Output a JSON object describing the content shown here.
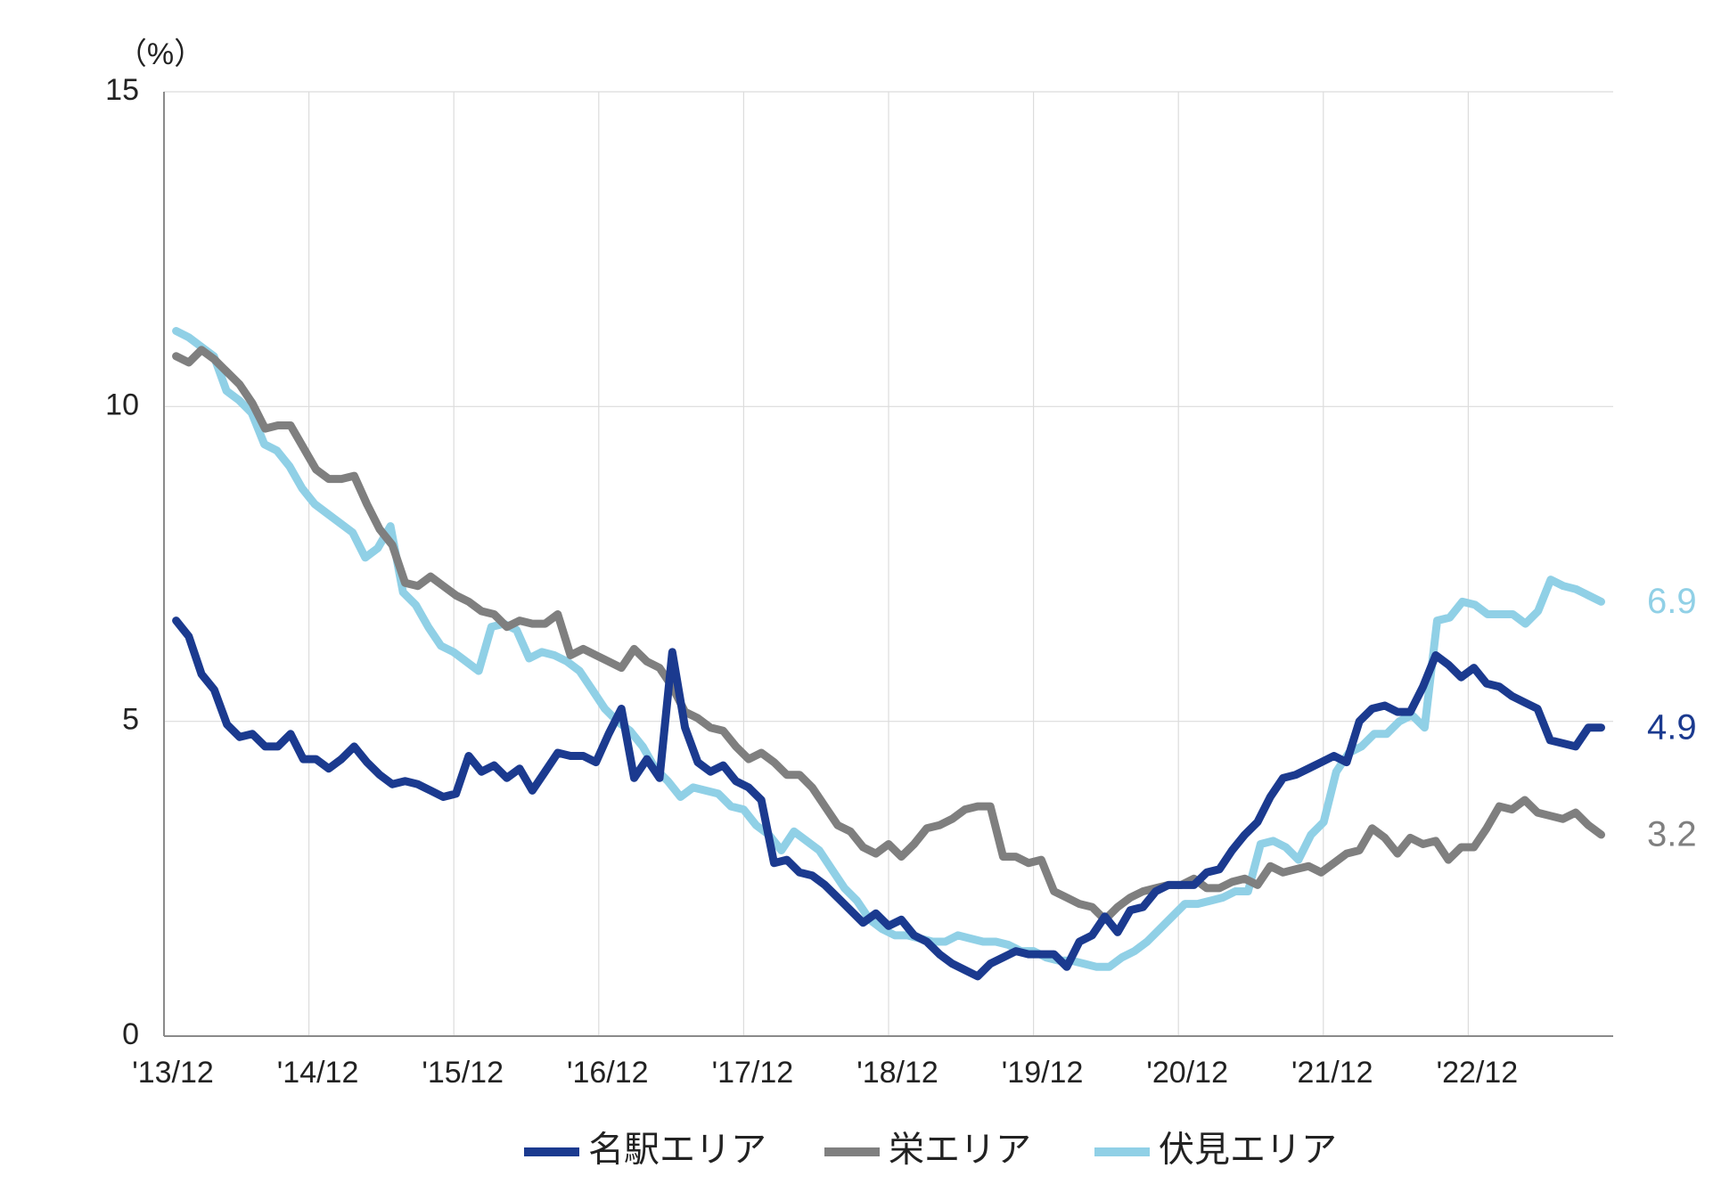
{
  "chart_data": {
    "type": "line",
    "ylabel": "（%）",
    "ylim": [
      0,
      15
    ],
    "yticks": [
      0,
      5,
      10,
      15
    ],
    "xticks": [
      "'13/12",
      "'14/12",
      "'15/12",
      "'16/12",
      "'17/12",
      "'18/12",
      "'19/12",
      "'20/12",
      "'21/12",
      "'22/12"
    ],
    "x_start_month": "2013/12",
    "grid": "vertical+horizontal",
    "legend_position": "bottom",
    "series": [
      {
        "name": "名駅エリア",
        "color": "#1b3a8f",
        "end_label": "4.9",
        "values": [
          6.6,
          6.35,
          5.75,
          5.5,
          4.95,
          4.75,
          4.8,
          4.6,
          4.6,
          4.8,
          4.4,
          4.4,
          4.25,
          4.4,
          4.6,
          4.35,
          4.15,
          4.0,
          4.05,
          4.0,
          3.9,
          3.8,
          3.85,
          4.45,
          4.2,
          4.3,
          4.1,
          4.25,
          3.9,
          4.2,
          4.5,
          4.45,
          4.45,
          4.35,
          4.8,
          5.2,
          4.1,
          4.4,
          4.1,
          6.1,
          4.9,
          4.35,
          4.2,
          4.3,
          4.05,
          3.95,
          3.75,
          2.75,
          2.8,
          2.6,
          2.55,
          2.4,
          2.2,
          2.0,
          1.8,
          1.95,
          1.75,
          1.85,
          1.6,
          1.5,
          1.3,
          1.15,
          1.05,
          0.95,
          1.15,
          1.25,
          1.35,
          1.3,
          1.3,
          1.3,
          1.1,
          1.5,
          1.6,
          1.9,
          1.65,
          2.0,
          2.05,
          2.3,
          2.4,
          2.4,
          2.4,
          2.6,
          2.65,
          2.95,
          3.2,
          3.4,
          3.8,
          4.1,
          4.15,
          4.25,
          4.35,
          4.45,
          4.35,
          5.0,
          5.2,
          5.25,
          5.15,
          5.15,
          5.55,
          6.05,
          5.9,
          5.7,
          5.85,
          5.6,
          5.55,
          5.4,
          5.3,
          5.2,
          4.7,
          4.65,
          4.6,
          4.9,
          4.9
        ]
      },
      {
        "name": "栄エリア",
        "color": "#7f7f7f",
        "end_label": "3.2",
        "values": [
          10.8,
          10.7,
          10.9,
          10.75,
          10.55,
          10.35,
          10.05,
          9.65,
          9.7,
          9.7,
          9.35,
          9.0,
          8.85,
          8.85,
          8.9,
          8.45,
          8.05,
          7.8,
          7.2,
          7.15,
          7.3,
          7.15,
          7.0,
          6.9,
          6.75,
          6.7,
          6.5,
          6.6,
          6.55,
          6.55,
          6.7,
          6.05,
          6.15,
          6.05,
          5.95,
          5.85,
          6.15,
          5.95,
          5.85,
          5.55,
          5.15,
          5.05,
          4.9,
          4.85,
          4.6,
          4.4,
          4.5,
          4.35,
          4.15,
          4.15,
          3.95,
          3.65,
          3.35,
          3.25,
          3.0,
          2.9,
          3.05,
          2.85,
          3.05,
          3.3,
          3.35,
          3.45,
          3.6,
          3.65,
          3.65,
          2.85,
          2.85,
          2.75,
          2.8,
          2.3,
          2.2,
          2.1,
          2.05,
          1.85,
          2.05,
          2.2,
          2.3,
          2.35,
          2.4,
          2.4,
          2.5,
          2.35,
          2.35,
          2.45,
          2.5,
          2.4,
          2.7,
          2.6,
          2.65,
          2.7,
          2.6,
          2.75,
          2.9,
          2.95,
          3.3,
          3.15,
          2.9,
          3.15,
          3.05,
          3.1,
          2.8,
          3.0,
          3.0,
          3.3,
          3.65,
          3.6,
          3.75,
          3.55,
          3.5,
          3.45,
          3.55,
          3.35,
          3.2
        ]
      },
      {
        "name": "伏見エリア",
        "color": "#90d0e6",
        "end_label": "6.9",
        "values": [
          11.2,
          11.1,
          10.95,
          10.8,
          10.25,
          10.1,
          9.9,
          9.4,
          9.3,
          9.05,
          8.7,
          8.45,
          8.3,
          8.15,
          8.0,
          7.6,
          7.75,
          8.1,
          7.05,
          6.85,
          6.5,
          6.2,
          6.1,
          5.95,
          5.8,
          6.5,
          6.55,
          6.45,
          6.0,
          6.1,
          6.05,
          5.95,
          5.8,
          5.5,
          5.2,
          5.0,
          4.85,
          4.6,
          4.25,
          4.05,
          3.8,
          3.95,
          3.9,
          3.85,
          3.65,
          3.6,
          3.35,
          3.2,
          2.95,
          3.25,
          3.1,
          2.95,
          2.65,
          2.35,
          2.15,
          1.85,
          1.7,
          1.6,
          1.6,
          1.55,
          1.5,
          1.5,
          1.6,
          1.55,
          1.5,
          1.5,
          1.45,
          1.35,
          1.35,
          1.25,
          1.2,
          1.2,
          1.15,
          1.1,
          1.1,
          1.25,
          1.35,
          1.5,
          1.7,
          1.9,
          2.1,
          2.1,
          2.15,
          2.2,
          2.3,
          2.3,
          3.05,
          3.1,
          3.0,
          2.8,
          3.2,
          3.4,
          4.2,
          4.5,
          4.6,
          4.8,
          4.8,
          5.0,
          5.1,
          4.9,
          6.6,
          6.65,
          6.9,
          6.85,
          6.7,
          6.7,
          6.7,
          6.55,
          6.75,
          7.25,
          7.15,
          7.1,
          7.0,
          6.9
        ]
      }
    ]
  }
}
